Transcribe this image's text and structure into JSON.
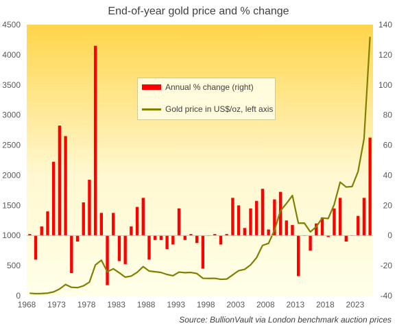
{
  "chart_data": {
    "type": "bar+line",
    "title": "End-of-year  gold price and % change",
    "source_label": "Source:",
    "source_text": "BullionVault via London  benchmark auction prices",
    "x_tick_labels": [
      "1968",
      "1973",
      "1978",
      "1983",
      "1988",
      "1993",
      "1998",
      "2003",
      "2008",
      "2013",
      "2018",
      "2023"
    ],
    "left_axis": {
      "ticks": [
        "0",
        "500",
        "1000",
        "1500",
        "2000",
        "2500",
        "3000",
        "3500",
        "4000",
        "4500"
      ],
      "range": [
        0,
        4500
      ]
    },
    "right_axis": {
      "ticks": [
        "-40",
        "-20",
        "0",
        "20",
        "40",
        "60",
        "80",
        "100",
        "120",
        "140"
      ],
      "range": [
        -40,
        140
      ]
    },
    "years": [
      1968,
      1969,
      1970,
      1971,
      1972,
      1973,
      1974,
      1975,
      1976,
      1977,
      1978,
      1979,
      1980,
      1981,
      1982,
      1983,
      1984,
      1985,
      1986,
      1987,
      1988,
      1989,
      1990,
      1991,
      1992,
      1993,
      1994,
      1995,
      1996,
      1997,
      1998,
      1999,
      2000,
      2001,
      2002,
      2003,
      2004,
      2005,
      2006,
      2007,
      2008,
      2009,
      2010,
      2011,
      2012,
      2013,
      2014,
      2015,
      2016,
      2017,
      2018,
      2019,
      2020,
      2021,
      2022,
      2023,
      2024,
      2025
    ],
    "series": [
      {
        "name": "Annual % change (right)",
        "kind": "bar",
        "axis": "right",
        "color": "#ff0000",
        "values": [
          1,
          -16,
          6,
          16,
          49,
          73,
          66,
          -25,
          -4,
          22,
          37,
          126,
          15,
          -33,
          15,
          -17,
          -19,
          6,
          19,
          25,
          -16,
          -3,
          -3,
          -9,
          -6,
          18,
          -3,
          1,
          -5,
          -22,
          0,
          1,
          -6,
          1,
          25,
          20,
          5,
          18,
          23,
          31,
          4,
          24,
          29,
          10,
          7,
          -27,
          0,
          -10,
          8,
          12,
          -1,
          18,
          25,
          -4,
          0,
          13,
          25,
          65
        ]
      },
      {
        "name": "Gold price in US$/oz, left axis",
        "kind": "line",
        "axis": "left",
        "color": "#7f7f00",
        "values": [
          41,
          35,
          37,
          43,
          64,
          112,
          187,
          140,
          135,
          165,
          226,
          512,
          590,
          398,
          448,
          381,
          309,
          327,
          390,
          484,
          410,
          399,
          386,
          353,
          333,
          392,
          383,
          387,
          369,
          290,
          288,
          290,
          273,
          277,
          347,
          417,
          438,
          513,
          632,
          836,
          869,
          1088,
          1410,
          1531,
          1664,
          1205,
          1206,
          1061,
          1146,
          1291,
          1282,
          1515,
          1886,
          1805,
          1813,
          2062,
          2607,
          4300
        ]
      }
    ],
    "legend": {
      "placement": "top-center",
      "items": [
        "Annual % change (right)",
        "Gold price in US$/oz, left axis"
      ]
    },
    "grid": false,
    "background_gradient": [
      "#ffd54a",
      "#fff8d0",
      "#ffffe8"
    ]
  }
}
